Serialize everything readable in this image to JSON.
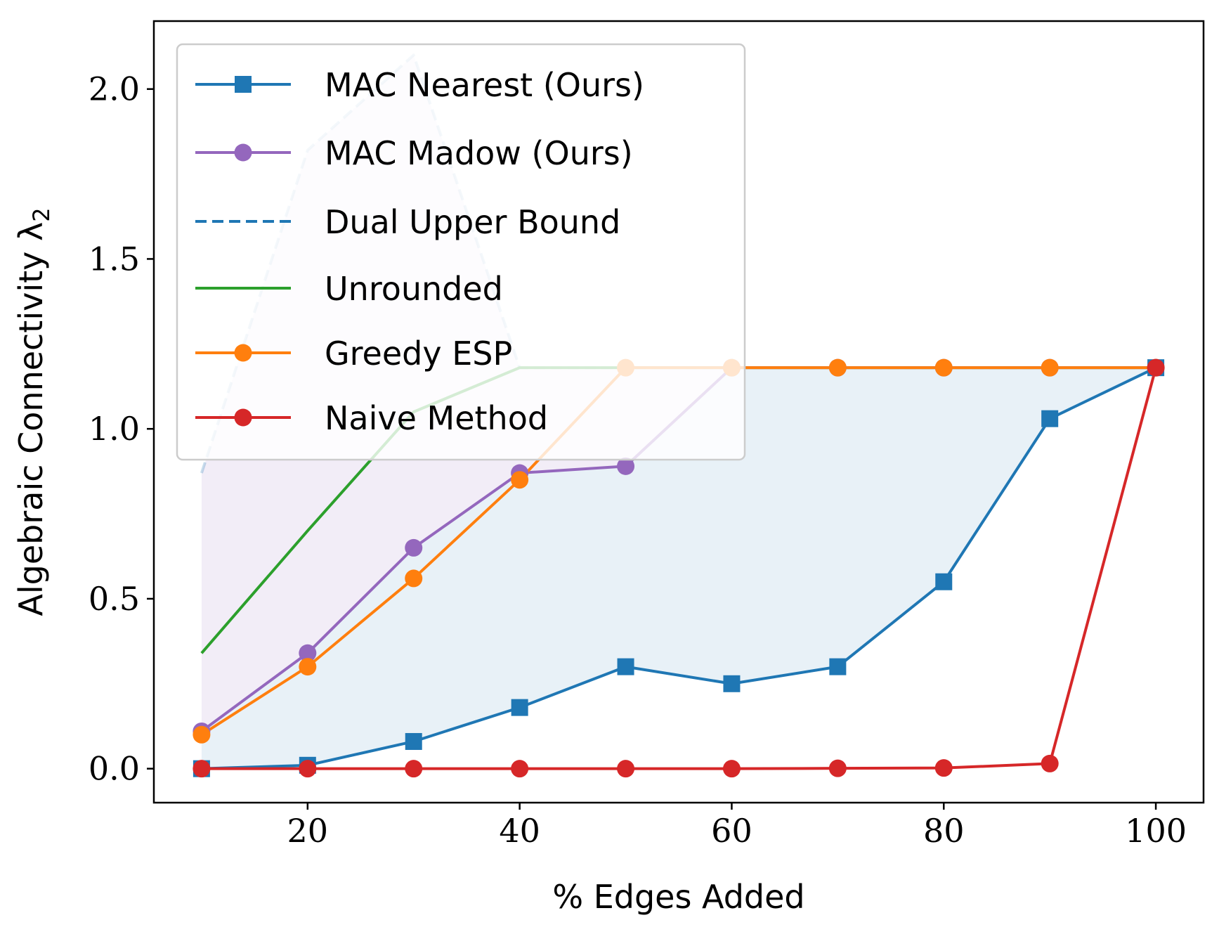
{
  "chart_data": {
    "type": "line",
    "xlabel": "% Edges Added",
    "ylabel": "Algebraic Connectivity λ",
    "ylabel_subscript": "2",
    "xlim": [
      5.5,
      104.5
    ],
    "ylim": [
      -0.1,
      2.2
    ],
    "xticks": [
      20,
      40,
      60,
      80,
      100
    ],
    "xtick_labels": [
      "20",
      "40",
      "60",
      "80",
      "100"
    ],
    "yticks": [
      0.0,
      0.5,
      1.0,
      1.5,
      2.0
    ],
    "ytick_labels": [
      "0.0",
      "0.5",
      "1.0",
      "1.5",
      "2.0"
    ],
    "grid": false,
    "legend_position": "top-left",
    "x": [
      10,
      20,
      30,
      40,
      50,
      60,
      70,
      80,
      90,
      100
    ],
    "series": [
      {
        "name": "MAC Nearest (Ours)",
        "color": "#1f77b4",
        "marker": "square",
        "style": "solid",
        "values": [
          0.0,
          0.01,
          0.08,
          0.18,
          0.3,
          0.25,
          0.3,
          0.55,
          1.03,
          1.18
        ]
      },
      {
        "name": "MAC Madow (Ours)",
        "color": "#9467bd",
        "marker": "circle",
        "style": "solid",
        "values": [
          0.11,
          0.34,
          0.65,
          0.87,
          0.89,
          1.18,
          1.18,
          1.18,
          1.18,
          1.18
        ]
      },
      {
        "name": "Dual Upper Bound",
        "color": "#1f77b4",
        "marker": "none",
        "style": "dashed",
        "values": [
          0.87,
          1.82,
          2.1,
          1.18,
          1.18,
          1.18,
          1.18,
          1.18,
          1.18,
          1.18
        ]
      },
      {
        "name": "Unrounded",
        "color": "#2ca02c",
        "marker": "none",
        "style": "solid",
        "values": [
          0.34,
          0.7,
          1.05,
          1.18,
          1.18,
          1.18,
          1.18,
          1.18,
          1.18,
          1.18
        ]
      },
      {
        "name": "Greedy ESP",
        "color": "#ff7f0e",
        "marker": "circle",
        "style": "solid",
        "values": [
          0.1,
          0.3,
          0.56,
          0.85,
          1.18,
          1.18,
          1.18,
          1.18,
          1.18,
          1.18
        ]
      },
      {
        "name": "Naive Method",
        "color": "#d62728",
        "marker": "circle",
        "style": "solid",
        "values": [
          0.0,
          0.0,
          0.0,
          0.0,
          0.0,
          0.0,
          0.001,
          0.002,
          0.015,
          1.18
        ]
      }
    ],
    "shaded_regions": [
      {
        "between": [
          "Dual Upper Bound",
          "MAC Madow (Ours)"
        ],
        "color": "#9467bd",
        "opacity": 0.12
      },
      {
        "between": [
          "MAC Madow (Ours)",
          "MAC Nearest (Ours)"
        ],
        "color": "#1f77b4",
        "opacity": 0.1
      }
    ]
  }
}
